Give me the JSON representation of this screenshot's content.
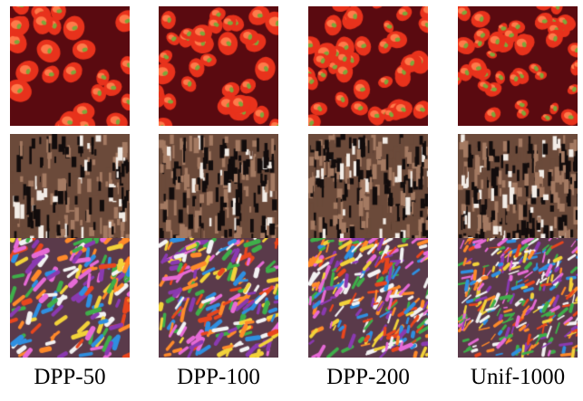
{
  "figure": {
    "columns": [
      {
        "label": "DPP-50"
      },
      {
        "label": "DPP-100"
      },
      {
        "label": "DPP-200"
      },
      {
        "label": "Unif-1000"
      }
    ],
    "rows": [
      {
        "texture": "red-cells",
        "palette": {
          "base": "#e8321c",
          "dark": "#5a0a10",
          "highlight": "#ff7a4a",
          "spot": "#7fa63a"
        }
      },
      {
        "texture": "brown-bark",
        "palette": {
          "base": "#6b4a3a",
          "dark": "#120c0c",
          "highlight": "#f2ece6",
          "spot": "#a47a62"
        }
      },
      {
        "texture": "colorful-sprinkles",
        "palette": {
          "base": "#5a3a4a",
          "colors": [
            "#e66ad6",
            "#2f8fe0",
            "#f2d23a",
            "#e8461e",
            "#3fae4a",
            "#f2f2f2",
            "#8a3ab0",
            "#ff8a2a"
          ]
        }
      }
    ]
  }
}
